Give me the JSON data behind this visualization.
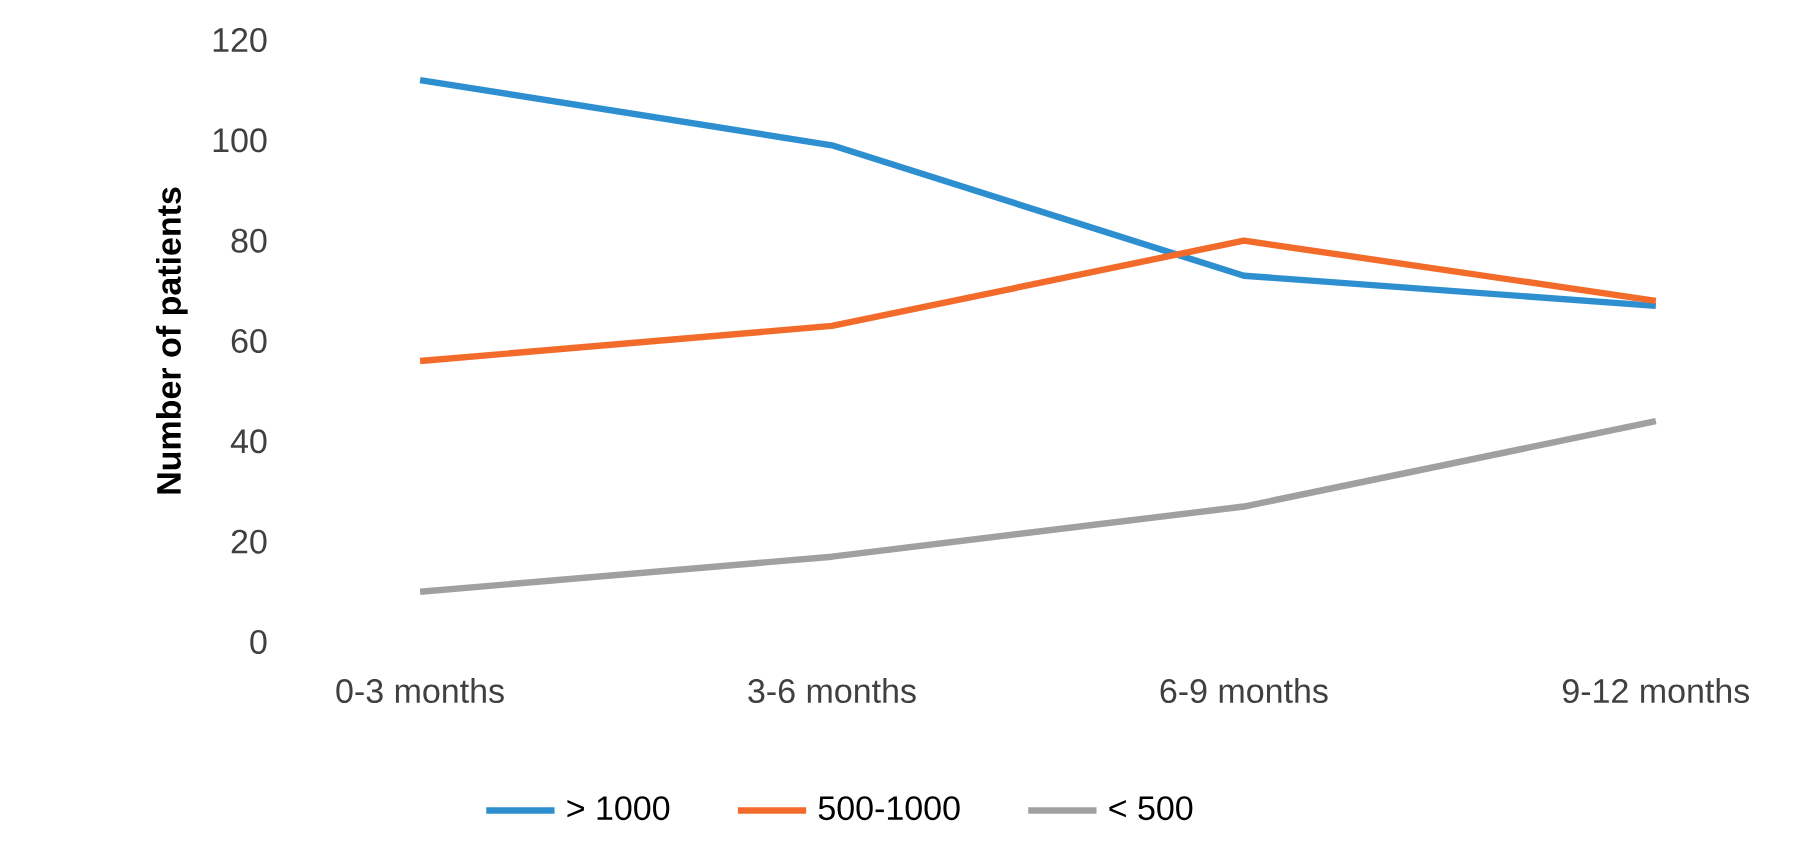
{
  "chart_data": {
    "type": "line",
    "ylabel": "Number of patients",
    "categories": [
      "0-3 months",
      "3-6 months",
      "6-9 months",
      "9-12 months"
    ],
    "series": [
      {
        "name": "> 1000",
        "color": "#2e8fd0",
        "values": [
          112,
          99,
          73,
          67
        ]
      },
      {
        "name": "500-1000",
        "color": "#f26b2a",
        "values": [
          56,
          63,
          80,
          68
        ]
      },
      {
        "name": "< 500",
        "color": "#a0a0a0",
        "values": [
          10,
          17,
          27,
          44
        ]
      }
    ],
    "ylim": [
      0,
      120
    ],
    "yticks": [
      0,
      20,
      40,
      60,
      80,
      100,
      120
    ],
    "legend": "bottom",
    "marker": "none",
    "line_style": "solid",
    "grid": false
  }
}
